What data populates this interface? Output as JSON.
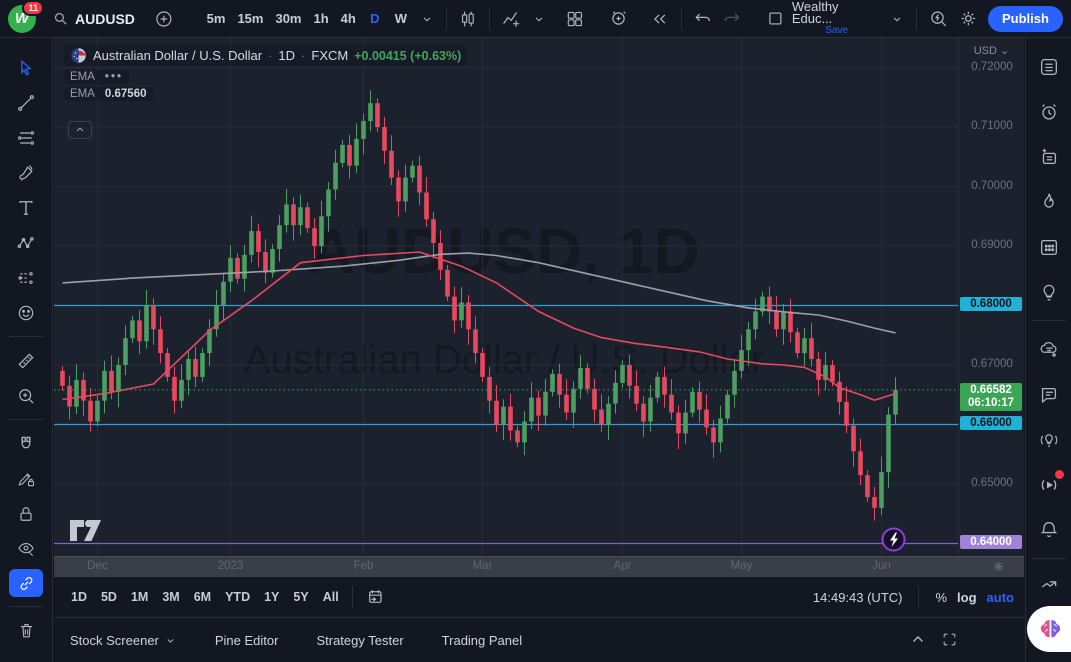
{
  "topbar": {
    "badge": "11",
    "symbol": "AUDUSD",
    "timeframes": [
      "5m",
      "15m",
      "30m",
      "1h",
      "4h",
      "D",
      "W"
    ],
    "active_timeframe": "D",
    "layout_name": "Wealthy Educ...",
    "save_label": "Save",
    "publish_label": "Publish"
  },
  "legend": {
    "title": "Australian Dollar / U.S. Dollar",
    "dot1": "·",
    "timeframe": "1D",
    "dot2": "·",
    "exchange": "FXCM",
    "change": "+0.00415 (+0.63%)",
    "ema1_label": "EMA",
    "ema1_value": "•••",
    "ema2_label": "EMA",
    "ema2_value": "0.67560",
    "collapse_glyph": "⌃"
  },
  "price_scale": {
    "currency": "USD",
    "plain_ticks": [
      {
        "price": 0.72,
        "label": "0.72000"
      },
      {
        "price": 0.71,
        "label": "0.71000"
      },
      {
        "price": 0.7,
        "label": "0.70000"
      },
      {
        "price": 0.69,
        "label": "0.69000"
      },
      {
        "price": 0.67,
        "label": "0.67000"
      },
      {
        "price": 0.65,
        "label": "0.65000"
      }
    ],
    "level_labels": [
      {
        "price": 0.68,
        "label": "0.68000",
        "bg": "#1fb1d6",
        "fg": "#0c1620"
      },
      {
        "price": 0.66,
        "label": "0.66000",
        "bg": "#1fb1d6",
        "fg": "#0c1620"
      },
      {
        "price": 0.64,
        "label": "0.64000",
        "bg": "#a083d9",
        "fg": "#ffffff"
      }
    ],
    "last_label": "0.66582",
    "countdown": "06:10:17",
    "last_bg": "#3aa655",
    "last_fg": "#ffffff"
  },
  "chart_data": {
    "type": "candlestick",
    "symbol": "AUDUSD",
    "interval": "1D",
    "watermark_line1": "AUDUSD, 1D",
    "watermark_line2": "Australian Dollar / U.S. Dollar",
    "ylim": [
      0.638,
      0.7205
    ],
    "grid": true,
    "first_open": 0.669,
    "closes": [
      0.6665,
      0.663,
      0.6675,
      0.664,
      0.6605,
      0.664,
      0.669,
      0.6655,
      0.67,
      0.6745,
      0.6775,
      0.674,
      0.68,
      0.676,
      0.672,
      0.668,
      0.664,
      0.6675,
      0.671,
      0.668,
      0.672,
      0.676,
      0.68,
      0.684,
      0.688,
      0.6845,
      0.6885,
      0.6925,
      0.689,
      0.6855,
      0.6895,
      0.6935,
      0.697,
      0.6935,
      0.6965,
      0.693,
      0.69,
      0.695,
      0.6995,
      0.704,
      0.707,
      0.7035,
      0.708,
      0.711,
      0.714,
      0.71,
      0.706,
      0.7015,
      0.6975,
      0.7015,
      0.7035,
      0.699,
      0.6945,
      0.6905,
      0.686,
      0.6815,
      0.6775,
      0.6805,
      0.676,
      0.672,
      0.668,
      0.664,
      0.66,
      0.663,
      0.659,
      0.657,
      0.6605,
      0.6645,
      0.6615,
      0.6655,
      0.6685,
      0.665,
      0.662,
      0.666,
      0.6695,
      0.666,
      0.6625,
      0.66,
      0.6635,
      0.667,
      0.67,
      0.6665,
      0.6635,
      0.6605,
      0.6645,
      0.668,
      0.665,
      0.662,
      0.6585,
      0.662,
      0.6655,
      0.6625,
      0.6595,
      0.657,
      0.661,
      0.665,
      0.669,
      0.6725,
      0.676,
      0.679,
      0.6815,
      0.679,
      0.676,
      0.679,
      0.6755,
      0.672,
      0.6745,
      0.671,
      0.6675,
      0.67,
      0.6672,
      0.6638,
      0.6598,
      0.6555,
      0.6515,
      0.6478,
      0.646,
      0.652,
      0.66167,
      0.66582
    ],
    "last_price": 0.66582,
    "months": [
      {
        "label": "Dec",
        "index": 5
      },
      {
        "label": "2023",
        "index": 24
      },
      {
        "label": "Feb",
        "index": 43
      },
      {
        "label": "Mar",
        "index": 60
      },
      {
        "label": "Apr",
        "index": 80
      },
      {
        "label": "May",
        "index": 97
      },
      {
        "label": "Jun",
        "index": 117
      }
    ],
    "levels": [
      {
        "price": 0.68,
        "color": "#2e9fd4"
      },
      {
        "price": 0.66,
        "color": "#2e9fd4"
      },
      {
        "price": 0.64,
        "color": "#8561c5"
      }
    ],
    "ema_fast_color": "#e8495f",
    "ema_slow_color": "#9aa0ad",
    "ema_fast": [
      [
        0,
        0.6642
      ],
      [
        6,
        0.6652
      ],
      [
        13,
        0.6668
      ],
      [
        21,
        0.6758
      ],
      [
        27,
        0.6808
      ],
      [
        34,
        0.6872
      ],
      [
        43,
        0.6884
      ],
      [
        51,
        0.689
      ],
      [
        57,
        0.6866
      ],
      [
        62,
        0.6838
      ],
      [
        68,
        0.679
      ],
      [
        73,
        0.6762
      ],
      [
        77,
        0.6746
      ],
      [
        82,
        0.6736
      ],
      [
        86,
        0.673
      ],
      [
        91,
        0.6722
      ],
      [
        95,
        0.671
      ],
      [
        100,
        0.6702
      ],
      [
        103,
        0.67
      ],
      [
        106,
        0.6696
      ],
      [
        109,
        0.668
      ],
      [
        111,
        0.6662
      ],
      [
        114,
        0.665
      ],
      [
        116,
        0.6641
      ],
      [
        119,
        0.6652
      ]
    ],
    "ema_slow": [
      [
        0,
        0.6838
      ],
      [
        10,
        0.6846
      ],
      [
        20,
        0.6852
      ],
      [
        30,
        0.6858
      ],
      [
        40,
        0.6866
      ],
      [
        48,
        0.6876
      ],
      [
        54,
        0.6886
      ],
      [
        58,
        0.6888
      ],
      [
        62,
        0.6884
      ],
      [
        68,
        0.6872
      ],
      [
        74,
        0.6856
      ],
      [
        80,
        0.684
      ],
      [
        86,
        0.6824
      ],
      [
        92,
        0.6808
      ],
      [
        98,
        0.6796
      ],
      [
        104,
        0.6788
      ],
      [
        108,
        0.6784
      ],
      [
        112,
        0.6774
      ],
      [
        116,
        0.6762
      ],
      [
        119,
        0.6754
      ]
    ]
  },
  "range_bar": {
    "ranges": [
      "1D",
      "5D",
      "1M",
      "3M",
      "6M",
      "YTD",
      "1Y",
      "5Y",
      "All"
    ],
    "clock": "14:49:43 (UTC)",
    "percent": "%",
    "log": "log",
    "auto": "auto"
  },
  "bottom_panel": {
    "tabs": [
      "Stock Screener",
      "Pine Editor",
      "Strategy Tester",
      "Trading Panel"
    ]
  },
  "colors": {
    "up": "#4e9e62",
    "down": "#e8485e",
    "accent": "#2962ff",
    "chart_bg": "#1c212e",
    "grid": "#262b37",
    "last_line": "#3aa655",
    "watermark": "#141821"
  }
}
